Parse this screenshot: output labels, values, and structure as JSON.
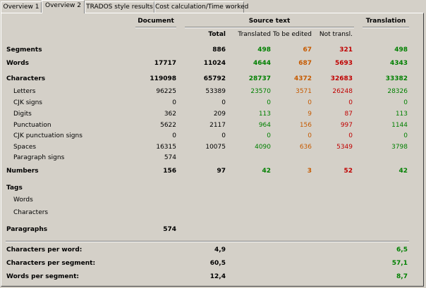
{
  "tabs": [
    {
      "label": "Overview 1",
      "active": false
    },
    {
      "label": "Overview 2",
      "active": true
    },
    {
      "label": "TRADOS style results",
      "active": false
    },
    {
      "label": "Cost calculation/Time worked",
      "active": false
    }
  ],
  "headers": {
    "document": "Document",
    "source_text": "Source text",
    "translation": "Translation",
    "total": "Total",
    "translated": "Translated",
    "to_be_edited": "To be edited",
    "not_translated": "Not transl."
  },
  "rows": [
    {
      "label": "Segments",
      "bold": true,
      "document": "",
      "total": "886",
      "translated": "498",
      "to_be_edited": "67",
      "not_translated": "321",
      "translation": "498"
    },
    {
      "label": "Words",
      "bold": true,
      "document": "17717",
      "total": "11024",
      "translated": "4644",
      "to_be_edited": "687",
      "not_translated": "5693",
      "translation": "4343"
    },
    {
      "label": "Characters",
      "bold": true,
      "document": "119098",
      "total": "65792",
      "translated": "28737",
      "to_be_edited": "4372",
      "not_translated": "32683",
      "translation": "33382"
    },
    {
      "label": "Letters",
      "bold": false,
      "document": "96225",
      "total": "53389",
      "translated": "23570",
      "to_be_edited": "3571",
      "not_translated": "26248",
      "translation": "28326"
    },
    {
      "label": "CJK signs",
      "bold": false,
      "document": "0",
      "total": "0",
      "translated": "0",
      "to_be_edited": "0",
      "not_translated": "0",
      "translation": "0"
    },
    {
      "label": "Digits",
      "bold": false,
      "document": "362",
      "total": "209",
      "translated": "113",
      "to_be_edited": "9",
      "not_translated": "87",
      "translation": "113"
    },
    {
      "label": "Punctuation",
      "bold": false,
      "document": "5622",
      "total": "2117",
      "translated": "964",
      "to_be_edited": "156",
      "not_translated": "997",
      "translation": "1144"
    },
    {
      "label": "CJK punctuation signs",
      "bold": false,
      "document": "0",
      "total": "0",
      "translated": "0",
      "to_be_edited": "0",
      "not_translated": "0",
      "translation": "0"
    },
    {
      "label": "Spaces",
      "bold": false,
      "document": "16315",
      "total": "10075",
      "translated": "4090",
      "to_be_edited": "636",
      "not_translated": "5349",
      "translation": "3798"
    },
    {
      "label": "Paragraph signs",
      "bold": false,
      "document": "574",
      "total": "",
      "translated": "",
      "to_be_edited": "",
      "not_translated": "",
      "translation": ""
    },
    {
      "label": "Numbers",
      "bold": true,
      "document": "156",
      "total": "97",
      "translated": "42",
      "to_be_edited": "3",
      "not_translated": "52",
      "translation": "42"
    },
    {
      "label": "Tags",
      "bold": true,
      "document": "",
      "total": "",
      "translated": "",
      "to_be_edited": "",
      "not_translated": "",
      "translation": ""
    },
    {
      "label": "Words",
      "bold": false,
      "document": "",
      "total": "",
      "translated": "",
      "to_be_edited": "",
      "not_translated": "",
      "translation": ""
    },
    {
      "label": "Characters",
      "bold": false,
      "document": "",
      "total": "",
      "translated": "",
      "to_be_edited": "",
      "not_translated": "",
      "translation": ""
    },
    {
      "label": "Paragraphs",
      "bold": true,
      "document": "574",
      "total": "",
      "translated": "",
      "to_be_edited": "",
      "not_translated": "",
      "translation": ""
    }
  ],
  "ratios": [
    {
      "label": "Characters per word:",
      "total": "4,9",
      "translation": "6,5"
    },
    {
      "label": "Characters per segment:",
      "total": "60,5",
      "translation": "57,1"
    },
    {
      "label": "Words per segment:",
      "total": "12,4",
      "translation": "8,7"
    }
  ],
  "colors": {
    "translated": "#008000",
    "to_be_edited": "#c65a00",
    "not_translated": "#c00000",
    "background": "#d4d0c8"
  }
}
